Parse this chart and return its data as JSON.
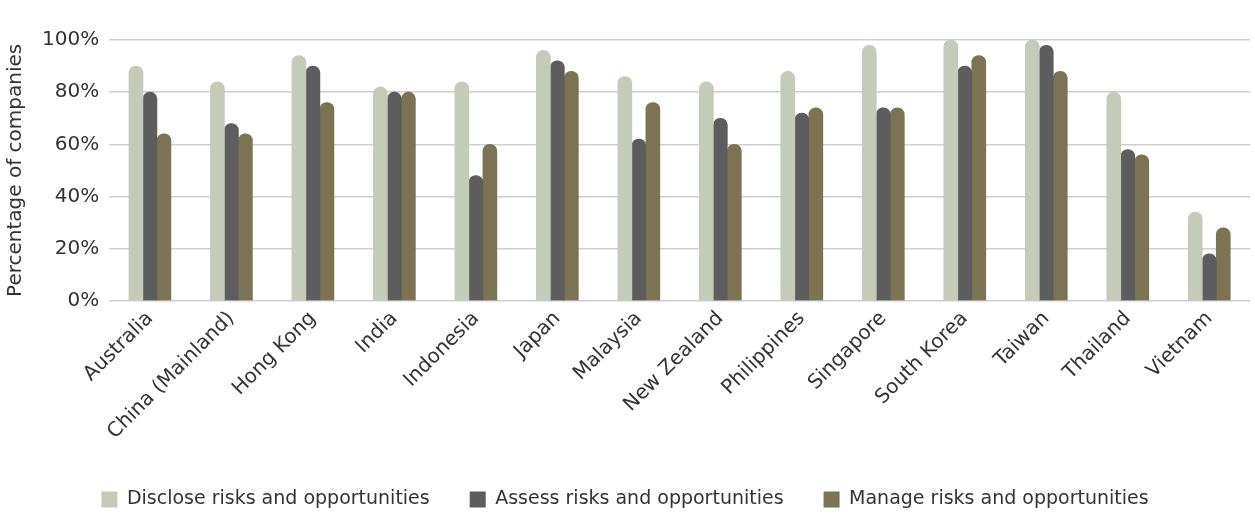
{
  "chart_data": {
    "type": "bar",
    "ylabel": "Percentage of companies",
    "categories": [
      "Australia",
      "China (Mainland)",
      "Hong Kong",
      "India",
      "Indonesia",
      "Japan",
      "Malaysia",
      "New Zealand",
      "Philippines",
      "Singapore",
      "South Korea",
      "Taiwan",
      "Thailand",
      "Vietnam"
    ],
    "series": [
      {
        "name": "Disclose risks and opportunities",
        "color": "#c5cbb9",
        "values": [
          90,
          84,
          94,
          82,
          84,
          96,
          86,
          84,
          88,
          98,
          100,
          100,
          80,
          34
        ]
      },
      {
        "name": "Assess risks and opportunities",
        "color": "#5d5d5d",
        "values": [
          80,
          68,
          90,
          80,
          48,
          92,
          62,
          70,
          72,
          74,
          90,
          98,
          58,
          18
        ]
      },
      {
        "name": "Manage risks and opportunities",
        "color": "#7b7354",
        "values": [
          64,
          64,
          76,
          80,
          60,
          88,
          76,
          60,
          74,
          74,
          94,
          88,
          56,
          28
        ]
      }
    ],
    "ylim": [
      0,
      100
    ],
    "yticks": [
      {
        "value": 0,
        "label": "0%"
      },
      {
        "value": 20,
        "label": "20%"
      },
      {
        "value": 40,
        "label": "40%"
      },
      {
        "value": 60,
        "label": "60%"
      },
      {
        "value": 80,
        "label": "80%"
      },
      {
        "value": 100,
        "label": "100%"
      }
    ],
    "grid": "y",
    "legend": "bottom"
  }
}
